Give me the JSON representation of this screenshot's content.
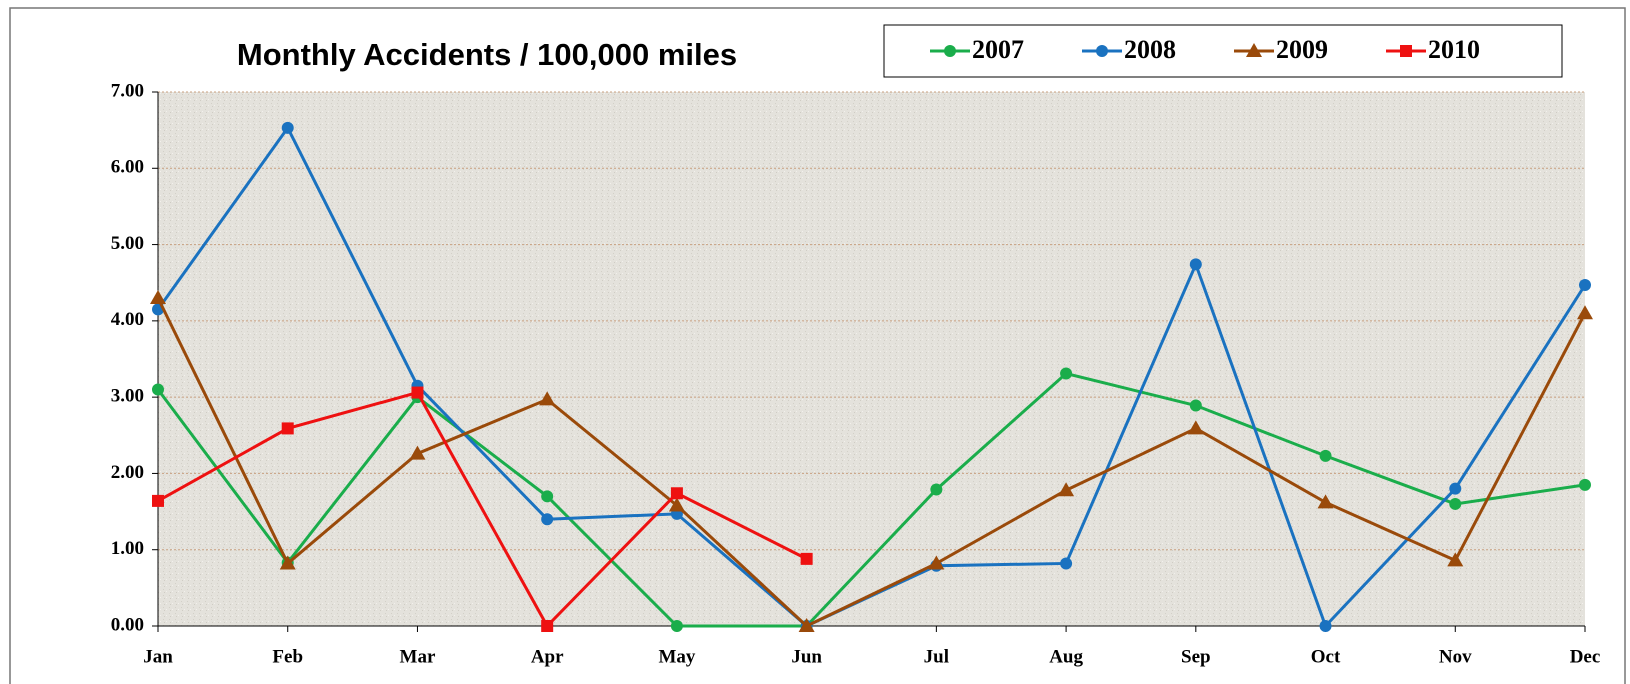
{
  "chart_data": {
    "type": "line",
    "title": "Monthly Accidents / 100,000 miles",
    "categories": [
      "Jan",
      "Feb",
      "Mar",
      "Apr",
      "May",
      "Jun",
      "Jul",
      "Aug",
      "Sep",
      "Oct",
      "Nov",
      "Dec"
    ],
    "series": [
      {
        "name": "2007",
        "color": "#1aad4b",
        "marker": "circle",
        "values": [
          3.1,
          0.83,
          3.0,
          1.7,
          0,
          0,
          1.79,
          3.31,
          2.89,
          2.23,
          1.6,
          1.85
        ]
      },
      {
        "name": "2008",
        "color": "#1a72c0",
        "marker": "circle",
        "values": [
          4.15,
          6.53,
          3.15,
          1.4,
          1.47,
          0,
          0.79,
          0.82,
          4.74,
          0,
          1.8,
          4.47
        ]
      },
      {
        "name": "2009",
        "color": "#9a4a0a",
        "marker": "triangle",
        "values": [
          4.3,
          0.82,
          2.26,
          2.97,
          1.58,
          0,
          0.82,
          1.78,
          2.59,
          1.62,
          0.86,
          4.1
        ]
      },
      {
        "name": "2010",
        "color": "#ee1111",
        "marker": "square",
        "values": [
          1.64,
          2.59,
          3.06,
          0,
          1.74,
          0.88,
          null,
          null,
          null,
          null,
          null,
          null
        ]
      }
    ],
    "ylim": [
      0,
      7
    ],
    "yticks": [
      {
        "value": 0,
        "label": "0.00"
      },
      {
        "value": 1,
        "label": "1.00"
      },
      {
        "value": 2,
        "label": "2.00"
      },
      {
        "value": 3,
        "label": "3.00"
      },
      {
        "value": 4,
        "label": "4.00"
      },
      {
        "value": 5,
        "label": "5.00"
      },
      {
        "value": 6,
        "label": "6.00"
      },
      {
        "value": 7,
        "label": "7.00"
      }
    ],
    "grid": true,
    "legend": "top-right"
  }
}
